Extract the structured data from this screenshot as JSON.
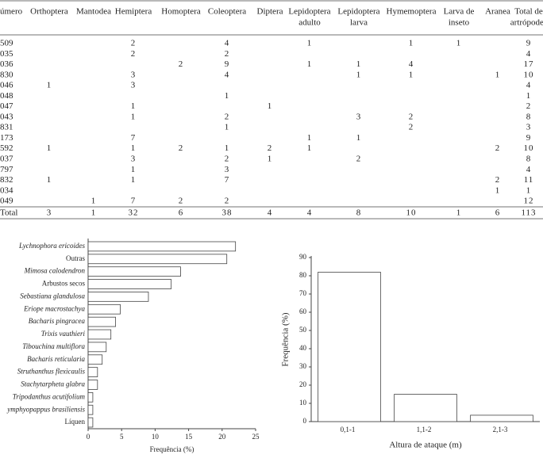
{
  "table": {
    "columns": [
      [
        "úmero"
      ],
      [
        "Orthoptera"
      ],
      [
        "Mantodea"
      ],
      [
        "Hemiptera"
      ],
      [
        "Homoptera"
      ],
      [
        "Coleoptera"
      ],
      [
        "Diptera"
      ],
      [
        "Lepidoptera",
        "adulto"
      ],
      [
        "Lepidoptera",
        "larva"
      ],
      [
        "Hymemoptera"
      ],
      [
        "Larva de",
        "inseto"
      ],
      [
        "Aranea"
      ],
      [
        "Total de",
        "artrópodes"
      ]
    ],
    "rows": [
      [
        "509",
        null,
        null,
        2,
        null,
        4,
        null,
        1,
        null,
        1,
        1,
        null,
        9
      ],
      [
        "035",
        null,
        null,
        2,
        null,
        2,
        null,
        null,
        null,
        null,
        null,
        null,
        4
      ],
      [
        "036",
        null,
        null,
        null,
        2,
        9,
        null,
        1,
        1,
        4,
        null,
        null,
        17
      ],
      [
        "830",
        null,
        null,
        3,
        null,
        4,
        null,
        null,
        1,
        1,
        null,
        1,
        10
      ],
      [
        "046",
        1,
        null,
        3,
        null,
        null,
        null,
        null,
        null,
        null,
        null,
        null,
        4
      ],
      [
        "048",
        null,
        null,
        null,
        null,
        1,
        null,
        null,
        null,
        null,
        null,
        null,
        1
      ],
      [
        "047",
        null,
        null,
        1,
        null,
        null,
        1,
        null,
        null,
        null,
        null,
        null,
        2
      ],
      [
        "043",
        null,
        null,
        1,
        null,
        2,
        null,
        null,
        3,
        2,
        null,
        null,
        8
      ],
      [
        "831",
        null,
        null,
        null,
        null,
        1,
        null,
        null,
        null,
        2,
        null,
        null,
        3
      ],
      [
        "173",
        null,
        null,
        7,
        null,
        null,
        null,
        1,
        1,
        null,
        null,
        null,
        9
      ],
      [
        "592",
        1,
        null,
        1,
        2,
        1,
        2,
        1,
        null,
        null,
        null,
        2,
        10
      ],
      [
        "037",
        null,
        null,
        3,
        null,
        2,
        1,
        null,
        2,
        null,
        null,
        null,
        8
      ],
      [
        "797",
        null,
        null,
        1,
        null,
        3,
        null,
        null,
        null,
        null,
        null,
        null,
        4
      ],
      [
        "832",
        1,
        null,
        1,
        null,
        7,
        null,
        null,
        null,
        null,
        null,
        2,
        11
      ],
      [
        "034",
        null,
        null,
        null,
        null,
        null,
        null,
        null,
        null,
        null,
        null,
        1,
        1
      ],
      [
        "049",
        null,
        1,
        7,
        2,
        2,
        null,
        null,
        null,
        null,
        null,
        null,
        12
      ],
      [
        "Total",
        3,
        1,
        32,
        6,
        38,
        4,
        4,
        8,
        10,
        1,
        6,
        113
      ]
    ]
  },
  "chart_data": [
    {
      "type": "hbar",
      "xlabel": "Frequência (%)",
      "categories": [
        "Lychnophora ericoides",
        "Outras",
        "Mimosa calodendron",
        "Arbustos secos",
        "Sebastiana glandulosa",
        "Eriope macrostachya",
        "Bacharis pingracea",
        "Trixis vauthieri",
        "Tibouchina multiflora",
        "Bacharis reticularia",
        "Struthanthus flexicaulis",
        "Stachytarpheta glabra",
        "Tripodanthus acutifolium",
        "ymphyopappus brasiliensis",
        "Líquen"
      ],
      "italic": [
        true,
        false,
        true,
        false,
        true,
        true,
        true,
        true,
        true,
        true,
        true,
        true,
        true,
        true,
        false
      ],
      "values": [
        22,
        20.7,
        13.8,
        12.4,
        9,
        4.8,
        4.1,
        3.4,
        2.7,
        2.1,
        1.4,
        1.4,
        0.7,
        0.7,
        0.7
      ],
      "color": "#ffffff",
      "xlim": [
        0,
        25
      ],
      "xticks": [
        0,
        5,
        10,
        15,
        20,
        25
      ]
    },
    {
      "type": "bar",
      "xlabel": "Altura de ataque (m)",
      "ylabel": "Frequência (%)",
      "categories": [
        "0,1-1",
        "1,1-2",
        "2,1-3"
      ],
      "values": [
        82,
        15,
        3.5
      ],
      "color": "#ffffff",
      "ylim": [
        0,
        90
      ],
      "yticks": [
        0,
        10,
        20,
        30,
        40,
        50,
        60,
        70,
        80,
        90
      ]
    }
  ]
}
